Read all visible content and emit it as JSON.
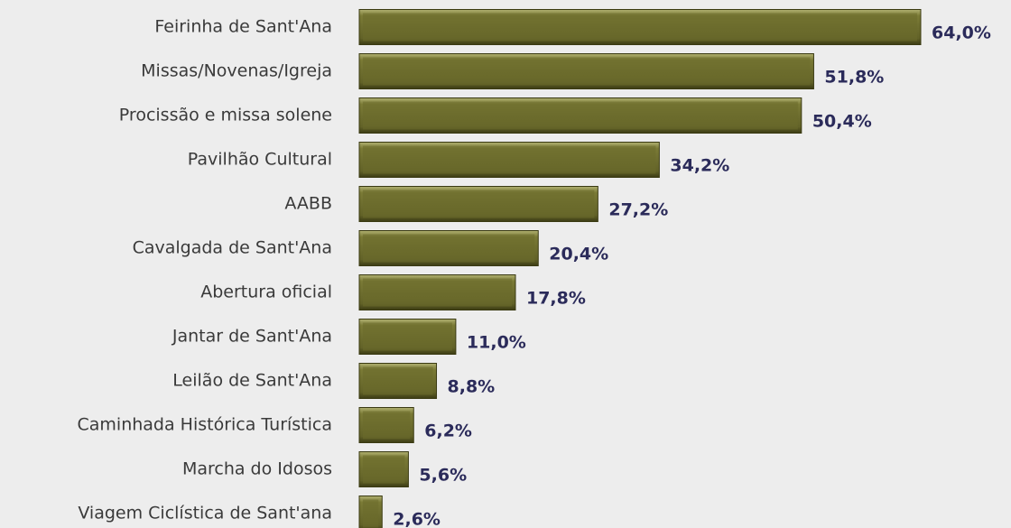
{
  "chart_data": {
    "type": "bar",
    "orientation": "horizontal",
    "categories": [
      "Feirinha de Sant'Ana",
      "Missas/Novenas/Igreja",
      "Procissão e missa solene",
      "Pavilhão Cultural",
      "AABB",
      "Cavalgada de Sant'Ana",
      "Abertura oficial",
      "Jantar de Sant'Ana",
      "Leilão de Sant'Ana",
      "Caminhada Histórica Turística",
      "Marcha do Idosos",
      "Viagem Ciclística de Sant'ana"
    ],
    "values": [
      64.0,
      51.8,
      50.4,
      34.2,
      27.2,
      20.4,
      17.8,
      11.0,
      8.8,
      6.2,
      5.6,
      2.6
    ],
    "value_labels": [
      "64,0%",
      "51,8%",
      "50,4%",
      "34,2%",
      "27,2%",
      "20,4%",
      "17,8%",
      "11,0%",
      "8,8%",
      "6,2%",
      "5,6%",
      "2,6%"
    ],
    "color": "#6b6b2c"
  }
}
